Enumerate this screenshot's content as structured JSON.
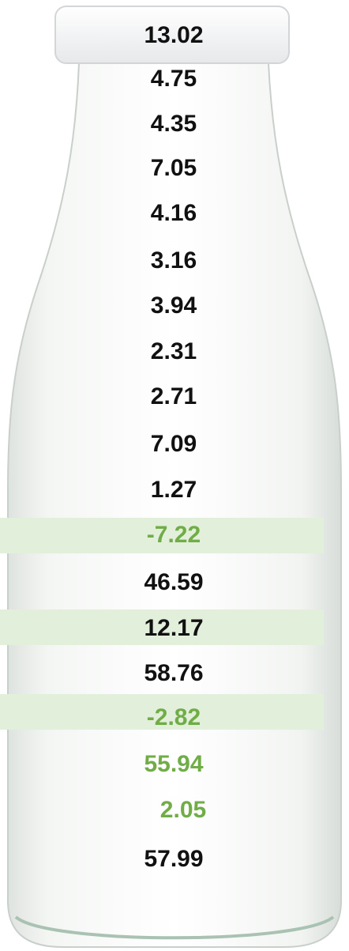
{
  "values": [
    "13.02",
    "4.75",
    "4.35",
    "7.05",
    "4.16",
    "3.16",
    "3.94",
    "2.31",
    "2.71",
    "7.09",
    "1.27",
    "-7.22",
    "46.59",
    "12.17",
    "58.76",
    "-2.82",
    "55.94",
    "2.05",
    "57.99"
  ]
}
